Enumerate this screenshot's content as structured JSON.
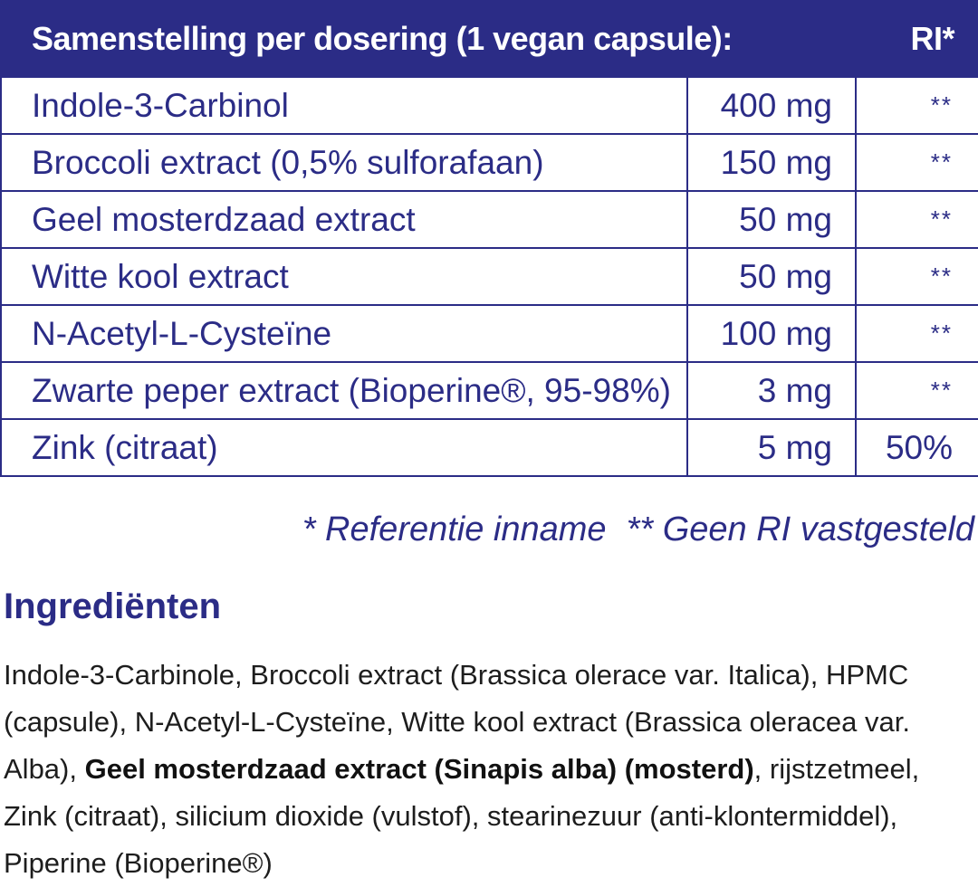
{
  "table": {
    "header": {
      "title": "Samenstelling per dosering (1 vegan capsule):",
      "ri": "RI*"
    },
    "rows": [
      {
        "name": "Indole-3-Carbinol",
        "amount": "400 mg",
        "ri": "**"
      },
      {
        "name": "Broccoli extract (0,5% sulforafaan)",
        "amount": "150 mg",
        "ri": "**"
      },
      {
        "name": "Geel mosterdzaad extract",
        "amount": "50 mg",
        "ri": "**"
      },
      {
        "name": "Witte kool extract",
        "amount": "50 mg",
        "ri": "**"
      },
      {
        "name": "N-Acetyl-L-Cysteïne",
        "amount": "100 mg",
        "ri": "**"
      },
      {
        "name": "Zwarte peper extract (Bioperine®, 95-98%)",
        "amount": "3 mg",
        "ri": "**"
      },
      {
        "name": "Zink (citraat)",
        "amount": "5 mg",
        "ri": "50%"
      }
    ]
  },
  "footnote": {
    "ri_note": "* Referentie inname",
    "no_ri_note": "** Geen RI vastgesteld"
  },
  "ingredients": {
    "title": "Ingrediënten",
    "text_part1": "Indole-3-Carbinole, Broccoli extract (Brassica olerace var. Italica), HPMC (capsule), N-Acetyl-L-Cysteïne, Witte kool extract (Brassica oleracea var. Alba), ",
    "bold_part": "Geel mosterdzaad extract (Sinapis alba) (mosterd)",
    "text_part2": ", rijstzetmeel, Zink (citraat), silicium dioxide (vulstof), stearinezuur (anti-klontermiddel), Piperine (Bioperine®)"
  },
  "colors": {
    "brand": "#2b2c86",
    "body_text": "#1d1d1d"
  }
}
